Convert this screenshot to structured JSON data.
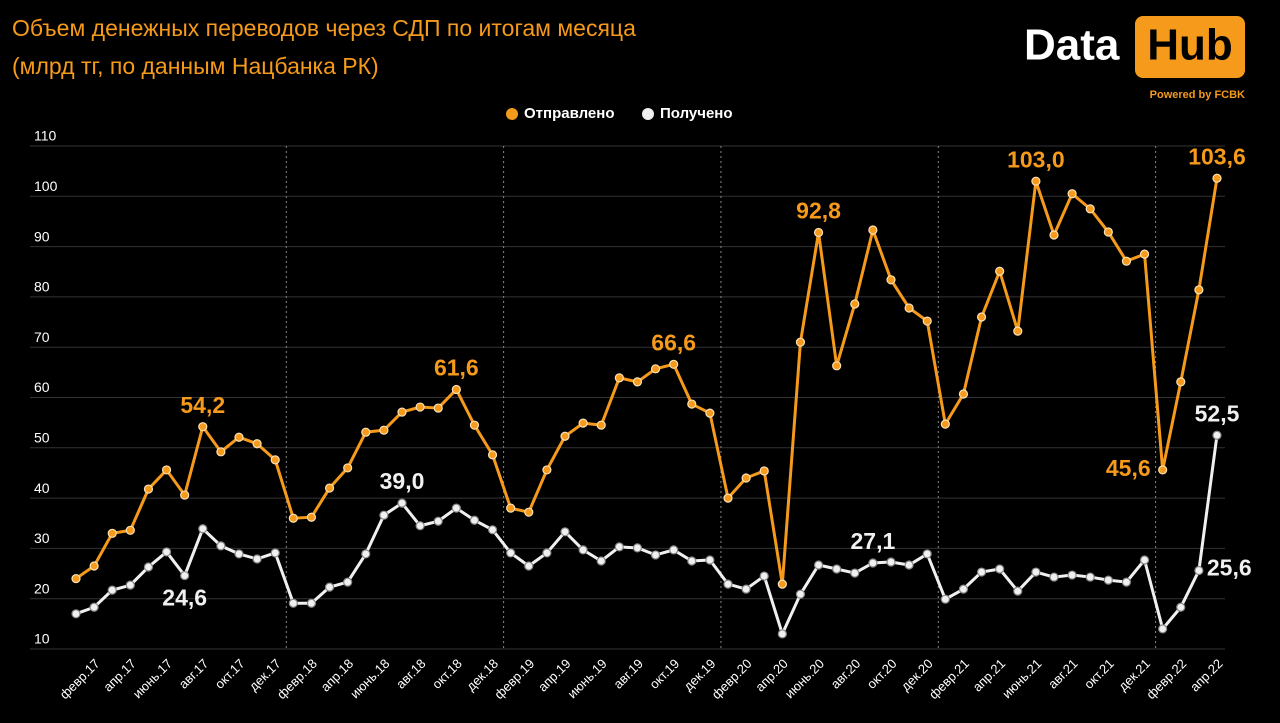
{
  "logo": {
    "text1": "Data",
    "text2": "Hub",
    "tagline": "Powered by FCBK"
  },
  "chart_data": {
    "type": "line",
    "title": "Объем денежных переводов через СДП по итогам месяца",
    "subtitle": "(млрд тг, по данным Нацбанка РК)",
    "categories": [
      null,
      "февр.17",
      null,
      "апр.17",
      null,
      "июнь.17",
      null,
      "авг.17",
      null,
      "окт.17",
      null,
      "дек.17",
      null,
      "февр.18",
      null,
      "апр.18",
      null,
      "июнь.18",
      null,
      "авг.18",
      null,
      "окт.18",
      null,
      "дек.18",
      null,
      "февр.19",
      null,
      "апр.19",
      null,
      "июнь.19",
      null,
      "авг.19",
      null,
      "окт.19",
      null,
      "дек.19",
      null,
      "февр.20",
      null,
      "апр.20",
      null,
      "июнь.20",
      null,
      "авг.20",
      null,
      "окт.20",
      null,
      "дек.20",
      null,
      "февр.21",
      null,
      "апр.21",
      null,
      "июнь.21",
      null,
      "авг.21",
      null,
      "окт.21",
      null,
      "дек.21",
      null,
      "февр.22",
      null,
      "апр.22"
    ],
    "series": [
      {
        "name": "Отправлено",
        "color": "#f59a1b",
        "values": [
          24.0,
          26.5,
          33.0,
          33.6,
          41.8,
          45.6,
          40.6,
          54.2,
          49.2,
          52.1,
          50.8,
          47.6,
          36.0,
          36.2,
          42.0,
          46.0,
          53.1,
          53.5,
          57.1,
          58.1,
          57.9,
          61.6,
          54.5,
          48.6,
          38.0,
          37.2,
          45.6,
          52.3,
          54.9,
          54.5,
          63.9,
          63.1,
          65.7,
          66.6,
          58.7,
          56.9,
          40.0,
          44.0,
          45.4,
          22.9,
          71.0,
          92.8,
          66.3,
          78.6,
          93.3,
          83.4,
          77.8,
          75.2,
          54.7,
          60.7,
          76.0,
          85.1,
          73.2,
          103.0,
          92.3,
          100.5,
          97.5,
          92.9,
          87.1,
          88.5,
          45.6,
          63.1,
          81.4,
          103.6
        ],
        "value_labels": [
          null,
          null,
          null,
          null,
          null,
          null,
          null,
          "54,2",
          null,
          null,
          null,
          null,
          null,
          null,
          null,
          null,
          null,
          null,
          null,
          null,
          null,
          "61,6",
          null,
          null,
          null,
          null,
          null,
          null,
          null,
          null,
          null,
          null,
          null,
          "66,6",
          null,
          null,
          null,
          null,
          null,
          null,
          null,
          "92,8",
          null,
          null,
          null,
          null,
          null,
          null,
          null,
          null,
          null,
          null,
          null,
          "103,0",
          null,
          null,
          null,
          null,
          null,
          null,
          "45,6",
          null,
          null,
          "103,6"
        ]
      },
      {
        "name": "Получено",
        "color": "#f0f0f0",
        "values": [
          17.0,
          18.3,
          21.7,
          22.7,
          26.3,
          29.3,
          24.6,
          33.9,
          30.5,
          28.9,
          27.9,
          29.1,
          19.1,
          19.1,
          22.3,
          23.3,
          28.9,
          36.6,
          39.0,
          34.5,
          35.4,
          38.0,
          35.6,
          33.7,
          29.1,
          26.5,
          29.1,
          33.3,
          29.7,
          27.5,
          30.3,
          30.1,
          28.7,
          29.7,
          27.5,
          27.7,
          22.9,
          21.9,
          24.5,
          13.0,
          20.9,
          26.7,
          25.9,
          25.1,
          27.1,
          27.3,
          26.7,
          28.9,
          19.9,
          21.9,
          25.3,
          25.9,
          21.5,
          25.3,
          24.3,
          24.7,
          24.3,
          23.7,
          23.3,
          27.7,
          14.0,
          18.3,
          25.6,
          52.5
        ],
        "value_labels": [
          null,
          null,
          null,
          null,
          null,
          null,
          "24,6",
          null,
          null,
          null,
          null,
          null,
          null,
          null,
          null,
          null,
          null,
          null,
          "39,0",
          null,
          null,
          null,
          null,
          null,
          null,
          null,
          null,
          null,
          null,
          null,
          null,
          null,
          null,
          null,
          null,
          null,
          null,
          null,
          null,
          null,
          null,
          null,
          null,
          null,
          "27,1",
          null,
          null,
          null,
          null,
          null,
          null,
          null,
          null,
          null,
          null,
          null,
          null,
          null,
          null,
          null,
          null,
          null,
          "25,6",
          "52,5"
        ]
      }
    ],
    "ylim": [
      10,
      110
    ],
    "yticks": [
      10,
      20,
      30,
      40,
      50,
      60,
      70,
      80,
      90,
      100,
      110
    ],
    "grid": true,
    "legend": "top"
  }
}
